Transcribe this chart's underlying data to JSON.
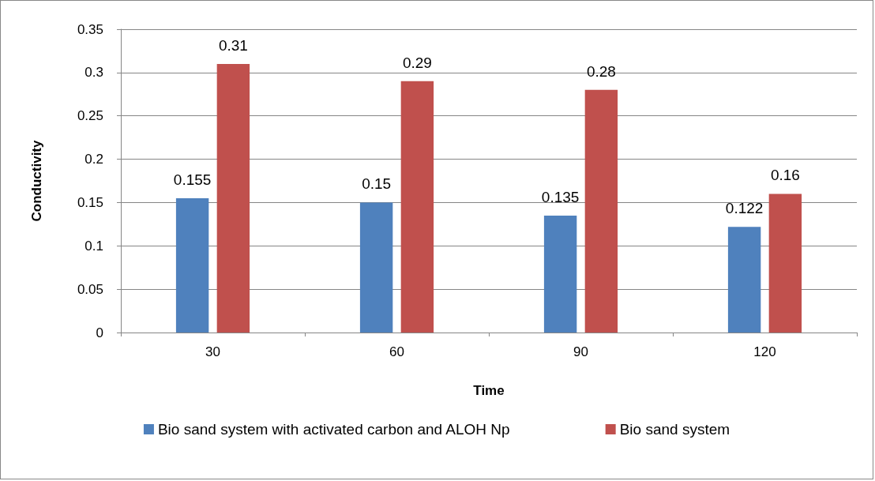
{
  "chart_data": {
    "type": "bar",
    "xlabel": "Time",
    "ylabel": "Conductivity",
    "categories": [
      "30",
      "60",
      "90",
      "120"
    ],
    "series": [
      {
        "name": "Bio sand system with activated carbon and ALOH Np",
        "color": "#4f81bd",
        "values": [
          0.155,
          0.15,
          0.135,
          0.122
        ]
      },
      {
        "name": "Bio sand system",
        "color": "#c0504d",
        "values": [
          0.31,
          0.29,
          0.28,
          0.16
        ]
      }
    ],
    "ylim": [
      0,
      0.35
    ],
    "yticks": [
      0,
      0.05,
      0.1,
      0.15,
      0.2,
      0.25,
      0.3,
      0.35
    ],
    "grid": "y",
    "legend": "bottom",
    "data_labels": true
  }
}
